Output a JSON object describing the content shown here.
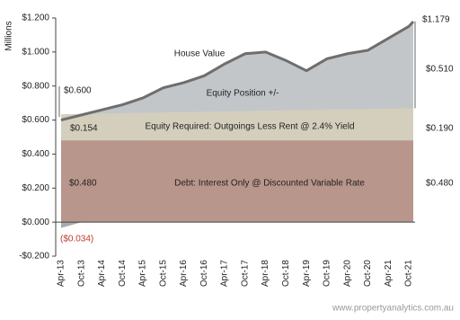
{
  "chart_data": {
    "type": "area",
    "y_label": "Millions",
    "categories": [
      "Apr-13",
      "Oct-13",
      "Apr-14",
      "Oct-14",
      "Apr-15",
      "Oct-15",
      "Apr-16",
      "Oct-16",
      "Apr-17",
      "Oct-17",
      "Apr-18",
      "Oct-18",
      "Apr-19",
      "Oct-19",
      "Apr-20",
      "Oct-20",
      "Apr-21",
      "Oct-21",
      null
    ],
    "ylim": [
      -0.2,
      1.2
    ],
    "yticks": [
      {
        "value": -0.2,
        "label": "-$0.200"
      },
      {
        "value": 0,
        "label": "$0.000"
      },
      {
        "value": 0.2,
        "label": "$0.200"
      },
      {
        "value": 0.4,
        "label": "$0.400"
      },
      {
        "value": 0.6,
        "label": "$0.600"
      },
      {
        "value": 0.8,
        "label": "$0.800"
      },
      {
        "value": 1,
        "label": "$1.000"
      },
      {
        "value": 1.2,
        "label": "$1.200"
      }
    ],
    "series": [
      {
        "name": "House Value",
        "color": "#6e6e6e",
        "values": [
          0.6,
          0.63,
          0.66,
          0.69,
          0.73,
          0.79,
          0.82,
          0.86,
          0.93,
          0.99,
          1.0,
          0.95,
          0.89,
          0.96,
          0.99,
          1.01,
          1.08,
          1.15,
          1.179
        ],
        "value_labels": [
          "$0.600",
          null,
          null,
          null,
          null,
          null,
          null,
          null,
          null,
          null,
          null,
          null,
          null,
          null,
          null,
          null,
          null,
          null,
          "$1.179"
        ]
      }
    ],
    "bands": [
      {
        "name": "Debt: Interest Only @ Discounted Variable Rate",
        "color": "#b8968b",
        "values": [
          0.48,
          0.48
        ],
        "value_labels": [
          "$0.480",
          "$0.480"
        ]
      },
      {
        "name": "Equity Required: Outgoings Less Rent @ 2.4% Yield",
        "color": "#d4cfbd",
        "values": [
          0.154,
          0.19
        ],
        "value_labels": [
          "$0.154",
          "$0.190"
        ]
      },
      {
        "name": "Equity Position +/-",
        "color": "#b4b8bc",
        "values": [
          -0.034,
          0.51
        ],
        "value_labels": [
          "($0.034)",
          "$0.510"
        ]
      }
    ],
    "source": "www.propertyanalytics.com.au"
  }
}
